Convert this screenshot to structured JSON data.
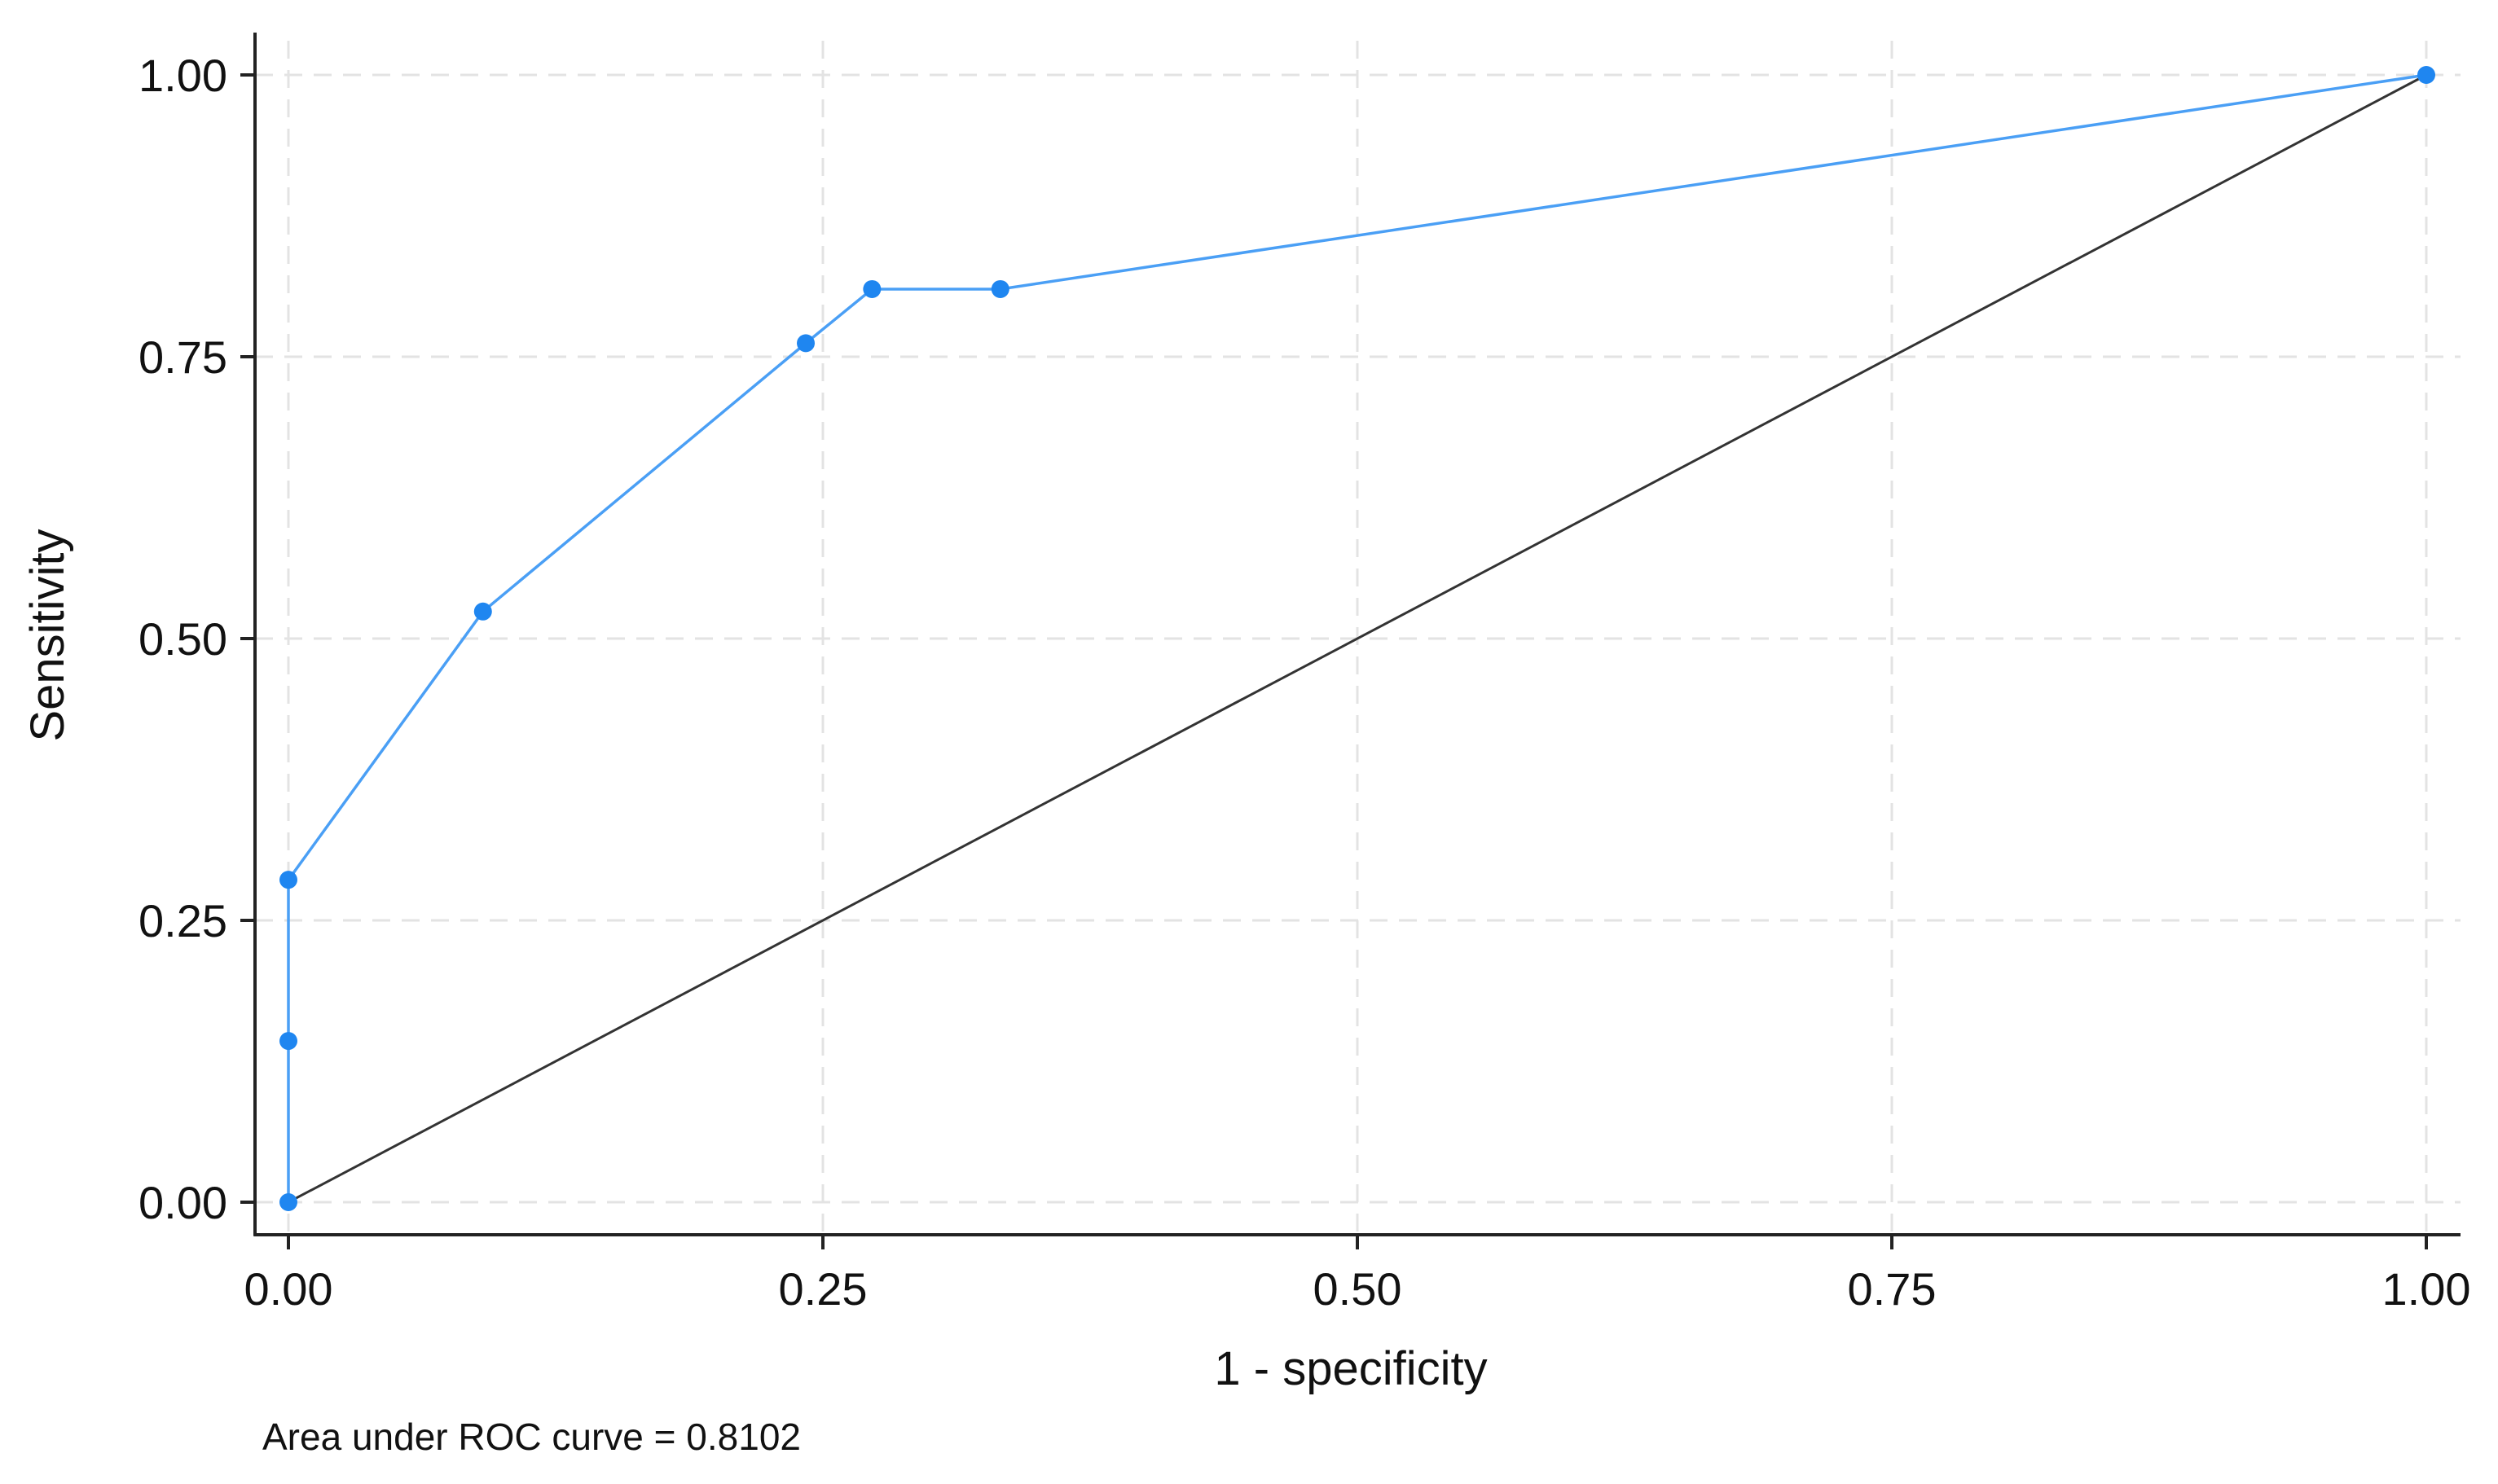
{
  "chart_data": {
    "type": "line",
    "xlabel": "1 - specificity",
    "ylabel": "Sensitivity",
    "xlim": [
      0,
      1
    ],
    "ylim": [
      0,
      1
    ],
    "x_ticks": [
      "0.00",
      "0.25",
      "0.50",
      "0.75",
      "1.00"
    ],
    "y_ticks": [
      "0.00",
      "0.25",
      "0.50",
      "0.75",
      "1.00"
    ],
    "grid": true,
    "note": "Area under ROC curve = 0.8102",
    "colors": {
      "roc": "#4a9ff5",
      "marker": "#1f86f0",
      "reference": "#333333",
      "grid": "#e3e3e3"
    },
    "series": [
      {
        "x": [
          0.0,
          0.0,
          0.0,
          0.091,
          0.242,
          0.273,
          0.333,
          1.0
        ],
        "y": [
          0.0,
          0.143,
          0.286,
          0.524,
          0.762,
          0.81,
          0.81,
          1.0
        ]
      }
    ],
    "reference_line": {
      "x": [
        0,
        1
      ],
      "y": [
        0,
        1
      ]
    }
  }
}
